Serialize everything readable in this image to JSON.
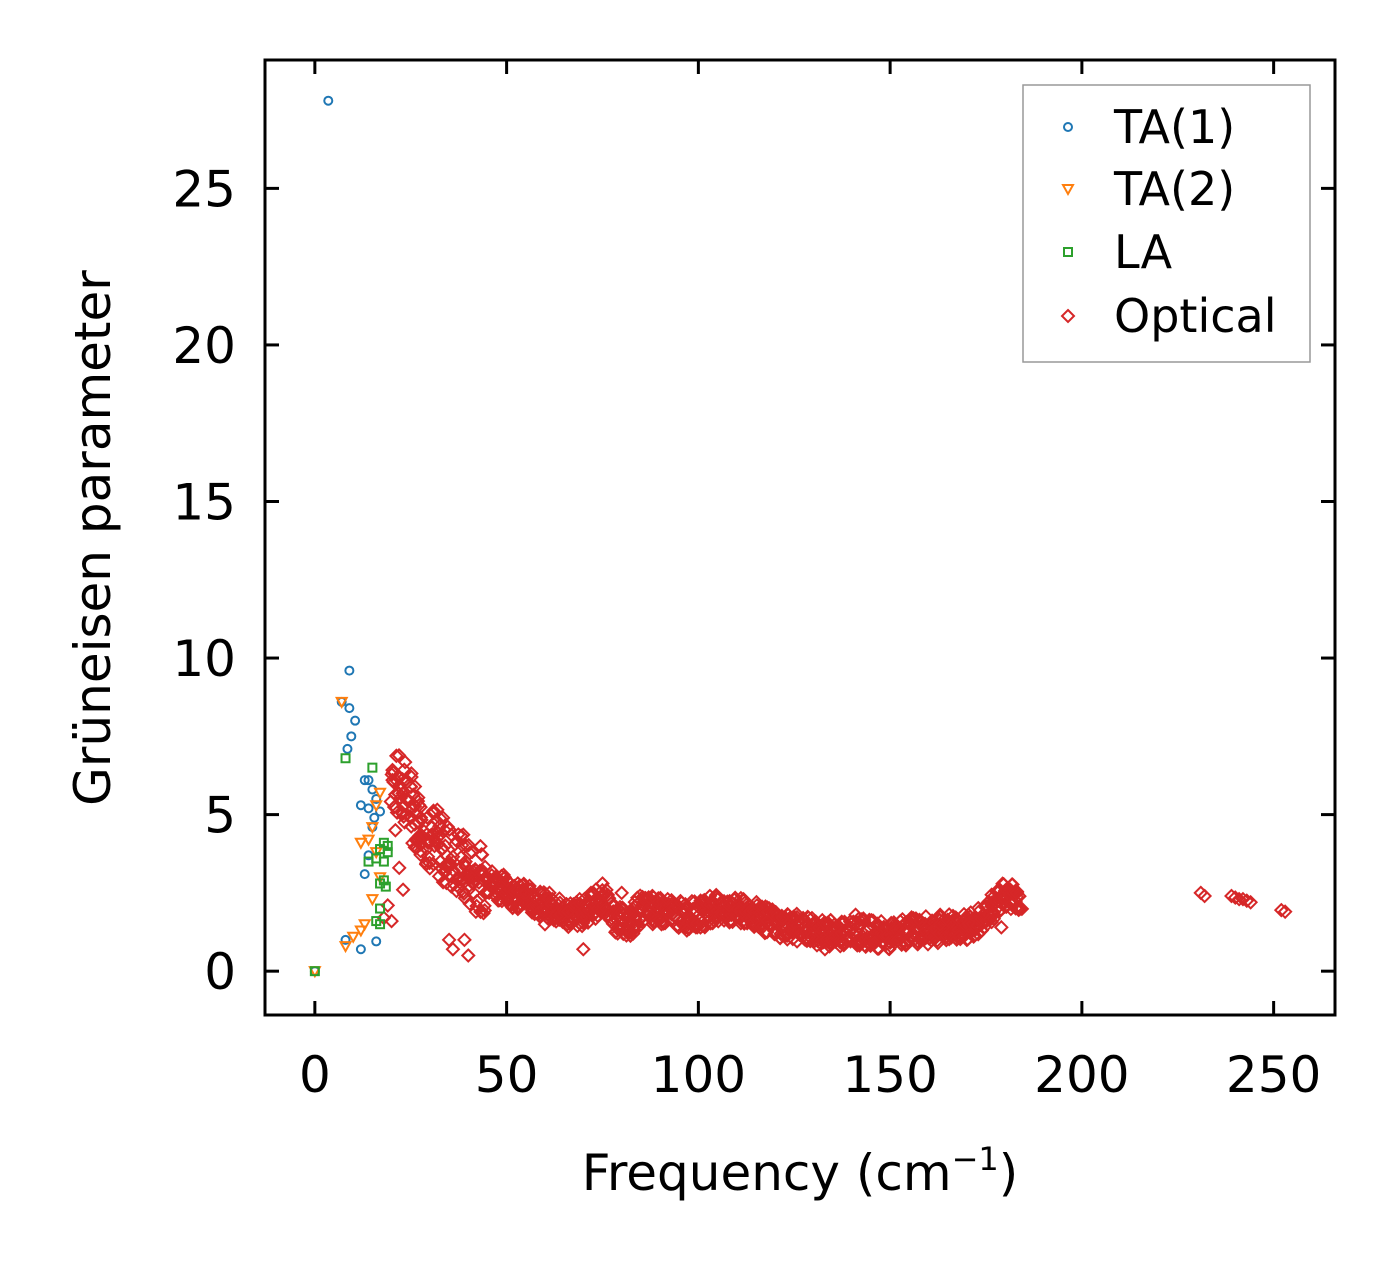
{
  "chart_data": {
    "type": "scatter",
    "title": "",
    "xlabel": "Frequency (cm",
    "xlabel_sup": "−1",
    "xlabel_close": ")",
    "ylabel": "Grüneisen parameter",
    "xlim": [
      -13,
      266
    ],
    "ylim": [
      -1.4,
      29.1
    ],
    "xticks": [
      0,
      50,
      100,
      150,
      200,
      250
    ],
    "yticks": [
      0,
      5,
      10,
      15,
      20,
      25
    ],
    "xtick_labels": [
      "0",
      "50",
      "100",
      "150",
      "200",
      "250"
    ],
    "ytick_labels": [
      "0",
      "5",
      "10",
      "15",
      "20",
      "25"
    ],
    "grid": false,
    "legend_position": "top-right",
    "series": [
      {
        "name": "TA(1)",
        "marker": "circle",
        "color": "#1f77b4",
        "points": [
          [
            0,
            0
          ],
          [
            3.5,
            27.8
          ],
          [
            9,
            9.6
          ],
          [
            7,
            8.6
          ],
          [
            9,
            8.4
          ],
          [
            10.5,
            8.0
          ],
          [
            9.5,
            7.5
          ],
          [
            8.5,
            7.1
          ],
          [
            13,
            6.1
          ],
          [
            14,
            6.1
          ],
          [
            15,
            5.8
          ],
          [
            12,
            5.3
          ],
          [
            14,
            5.2
          ],
          [
            16,
            5.5
          ],
          [
            15.5,
            4.9
          ],
          [
            14,
            3.7
          ],
          [
            13,
            3.1
          ],
          [
            8,
            1.0
          ],
          [
            12,
            0.7
          ],
          [
            16,
            0.95
          ],
          [
            15,
            4.6
          ],
          [
            17,
            5.1
          ]
        ]
      },
      {
        "name": "TA(2)",
        "marker": "triangle-down",
        "color": "#ff7f0e",
        "points": [
          [
            0,
            0
          ],
          [
            7,
            8.6
          ],
          [
            8,
            0.8
          ],
          [
            10,
            1.1
          ],
          [
            12,
            1.3
          ],
          [
            13,
            1.5
          ],
          [
            15,
            2.3
          ],
          [
            12,
            4.1
          ],
          [
            14,
            4.2
          ],
          [
            15,
            4.6
          ],
          [
            16,
            5.3
          ],
          [
            17,
            5.7
          ],
          [
            16,
            3.8
          ],
          [
            17,
            3.0
          ]
        ]
      },
      {
        "name": "LA",
        "marker": "square",
        "color": "#2ca02c",
        "points": [
          [
            0,
            0
          ],
          [
            8,
            6.8
          ],
          [
            15,
            6.5
          ],
          [
            14,
            3.5
          ],
          [
            16,
            3.6
          ],
          [
            17,
            3.9
          ],
          [
            18,
            4.1
          ],
          [
            19,
            3.8
          ],
          [
            17,
            2.8
          ],
          [
            18.5,
            2.7
          ],
          [
            17,
            2.0
          ],
          [
            16,
            1.6
          ],
          [
            17,
            1.5
          ],
          [
            18,
            3.5
          ],
          [
            19,
            4.0
          ],
          [
            18,
            2.9
          ]
        ]
      },
      {
        "name": "Optical",
        "marker": "diamond",
        "color": "#d62728",
        "cloud": [
          [
            20,
            6.3
          ],
          [
            21,
            6.0
          ],
          [
            22,
            5.8
          ],
          [
            23,
            5.9
          ],
          [
            24,
            5.6
          ],
          [
            25,
            5.3
          ],
          [
            26,
            5.1
          ],
          [
            27,
            4.9
          ],
          [
            28,
            4.6
          ],
          [
            30,
            4.3
          ],
          [
            32,
            4.1
          ],
          [
            34,
            3.8
          ],
          [
            36,
            3.6
          ],
          [
            38,
            3.4
          ],
          [
            40,
            3.2
          ],
          [
            42,
            3.0
          ],
          [
            45,
            2.9
          ],
          [
            48,
            2.7
          ],
          [
            50,
            2.6
          ],
          [
            53,
            2.4
          ],
          [
            56,
            2.3
          ],
          [
            60,
            2.1
          ],
          [
            64,
            1.9
          ],
          [
            68,
            1.8
          ],
          [
            72,
            2.0
          ],
          [
            75,
            2.3
          ],
          [
            78,
            1.7
          ],
          [
            82,
            1.5
          ],
          [
            85,
            2.0
          ],
          [
            90,
            1.9
          ],
          [
            95,
            1.8
          ],
          [
            100,
            1.8
          ],
          [
            105,
            2.0
          ],
          [
            110,
            1.9
          ],
          [
            115,
            1.8
          ],
          [
            120,
            1.5
          ],
          [
            125,
            1.4
          ],
          [
            130,
            1.3
          ],
          [
            135,
            1.2
          ],
          [
            140,
            1.3
          ],
          [
            145,
            1.2
          ],
          [
            150,
            1.1
          ],
          [
            155,
            1.3
          ],
          [
            160,
            1.3
          ],
          [
            165,
            1.4
          ],
          [
            170,
            1.4
          ],
          [
            175,
            1.7
          ],
          [
            178,
            2.2
          ],
          [
            180,
            2.5
          ],
          [
            182,
            2.4
          ],
          [
            184,
            2.3
          ]
        ],
        "points": [
          [
            18,
            1.7
          ],
          [
            19,
            2.1
          ],
          [
            20,
            1.6
          ],
          [
            21,
            4.5
          ],
          [
            22,
            3.3
          ],
          [
            23,
            2.6
          ],
          [
            22,
            6.2
          ],
          [
            25,
            5.9
          ],
          [
            27,
            4.2
          ],
          [
            30,
            4.1
          ],
          [
            33,
            3.9
          ],
          [
            35,
            1.0
          ],
          [
            36,
            0.7
          ],
          [
            38,
            3.3
          ],
          [
            39,
            1.0
          ],
          [
            40,
            0.5
          ],
          [
            44,
            2.9
          ],
          [
            47,
            3.0
          ],
          [
            50,
            2.9
          ],
          [
            55,
            2.5
          ],
          [
            60,
            1.5
          ],
          [
            66,
            1.9
          ],
          [
            70,
            0.7
          ],
          [
            72,
            2.5
          ],
          [
            75,
            2.8
          ],
          [
            80,
            2.5
          ],
          [
            83,
            1.2
          ],
          [
            88,
            2.4
          ],
          [
            92,
            2.3
          ],
          [
            97,
            1.3
          ],
          [
            103,
            2.4
          ],
          [
            108,
            2.1
          ],
          [
            118,
            1.6
          ],
          [
            122,
            1.7
          ],
          [
            128,
            1.6
          ],
          [
            133,
            0.7
          ],
          [
            137,
            0.8
          ],
          [
            141,
            1.8
          ],
          [
            146,
            0.9
          ],
          [
            152,
            1.0
          ],
          [
            158,
            1.6
          ],
          [
            163,
            1.5
          ],
          [
            168,
            1.1
          ],
          [
            170,
            1.0
          ],
          [
            179,
            1.4
          ],
          [
            183,
            2.5
          ],
          [
            231,
            2.5
          ],
          [
            232,
            2.4
          ],
          [
            239,
            2.4
          ],
          [
            240,
            2.35
          ],
          [
            241,
            2.3
          ],
          [
            242,
            2.3
          ],
          [
            243,
            2.25
          ],
          [
            244,
            2.2
          ],
          [
            252,
            1.95
          ],
          [
            253,
            1.9
          ]
        ]
      }
    ]
  }
}
